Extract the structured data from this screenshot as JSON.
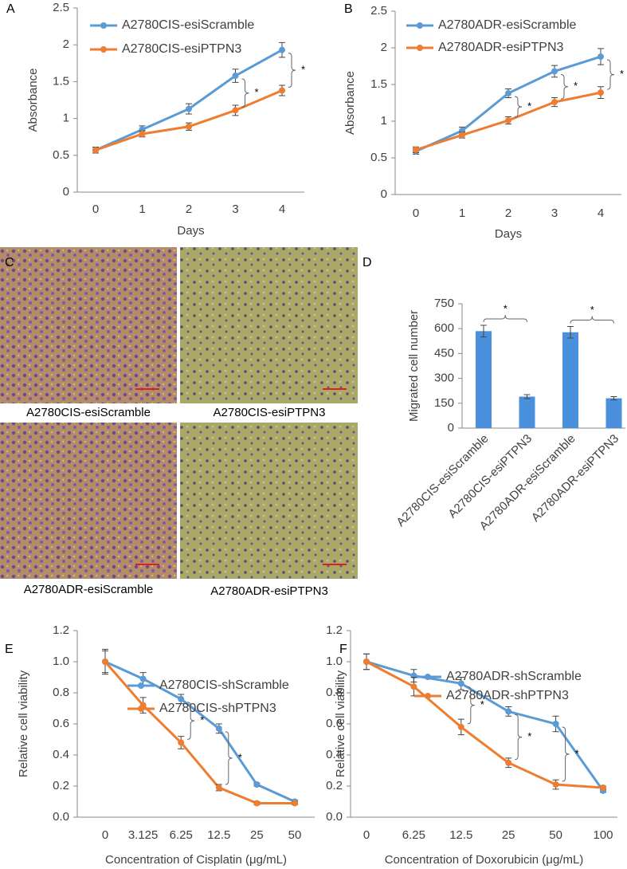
{
  "chart_data": [
    {
      "type": "line",
      "label": "A",
      "xlabel": "Days",
      "ylabel": "Absorbance",
      "categories": [
        "0",
        "1",
        "2",
        "3",
        "4"
      ],
      "series": [
        {
          "name": "A2780CIS-esiScramble",
          "color": "#5b9bd5",
          "values": [
            0.57,
            0.85,
            1.13,
            1.58,
            1.93
          ],
          "errors": [
            0.04,
            0.05,
            0.07,
            0.09,
            0.1
          ]
        },
        {
          "name": "A2780CIS-esiPTPN3",
          "color": "#ed7d31",
          "values": [
            0.57,
            0.79,
            0.89,
            1.11,
            1.38
          ],
          "errors": [
            0.04,
            0.04,
            0.05,
            0.07,
            0.07
          ]
        }
      ],
      "ylim": [
        0,
        2.5
      ],
      "yticks": [
        0,
        0.5,
        1,
        1.5,
        2,
        2.5
      ],
      "annotations": [
        "*",
        "*"
      ]
    },
    {
      "type": "line",
      "label": "B",
      "xlabel": "Days",
      "ylabel": "Absorbance",
      "categories": [
        "0",
        "1",
        "2",
        "3",
        "4"
      ],
      "series": [
        {
          "name": "A2780ADR-esiScramble",
          "color": "#5b9bd5",
          "values": [
            0.59,
            0.87,
            1.38,
            1.68,
            1.88
          ],
          "errors": [
            0.04,
            0.05,
            0.06,
            0.08,
            0.11
          ]
        },
        {
          "name": "A2780ADR-esiPTPN3",
          "color": "#ed7d31",
          "values": [
            0.61,
            0.81,
            1.01,
            1.26,
            1.39
          ],
          "errors": [
            0.04,
            0.04,
            0.05,
            0.06,
            0.08
          ]
        }
      ],
      "ylim": [
        0,
        2.5
      ],
      "yticks": [
        0,
        0.5,
        1,
        1.5,
        2,
        2.5
      ],
      "annotations": [
        "*",
        "*",
        "*"
      ]
    },
    {
      "type": "bar",
      "label": "D",
      "ylabel": "Migrated cell number",
      "categories": [
        "A2780CIS-esiScramble",
        "A2780CIS-esiPTPN3",
        "A2780ADR-esiScramble",
        "A2780ADR-esiPTPN3"
      ],
      "values": [
        585,
        190,
        578,
        180
      ],
      "errors": [
        35,
        12,
        35,
        10
      ],
      "color": "#4a90dc",
      "ylim": [
        0,
        750
      ],
      "yticks": [
        0,
        150,
        300,
        450,
        600,
        750
      ],
      "annotations": [
        "*",
        "*"
      ]
    },
    {
      "type": "line",
      "label": "E",
      "xlabel": "Concentration of Cisplatin (μg/mL)",
      "ylabel": "Relative cell viability",
      "categories": [
        "0",
        "3.125",
        "6.25",
        "12.5",
        "25",
        "50"
      ],
      "series": [
        {
          "name": "A2780CIS-shScramble",
          "color": "#5b9bd5",
          "values": [
            1.0,
            0.89,
            0.76,
            0.57,
            0.21,
            0.1
          ],
          "errors": [
            0.07,
            0.04,
            0.03,
            0.03,
            0.01,
            0.01
          ]
        },
        {
          "name": "A2780CIS-shPTPN3",
          "color": "#ed7d31",
          "values": [
            1.0,
            0.72,
            0.48,
            0.19,
            0.09,
            0.09
          ],
          "errors": [
            0.08,
            0.05,
            0.04,
            0.02,
            0.01,
            0.01
          ]
        }
      ],
      "ylim": [
        0,
        1.2
      ],
      "yticks": [
        {
          "value": 0,
          "label": "0.0"
        },
        {
          "value": 0.2,
          "label": "0.2"
        },
        {
          "value": 0.4,
          "label": "0.4"
        },
        {
          "value": 0.6,
          "label": "0.6"
        },
        {
          "value": 0.8,
          "label": "0.8"
        },
        {
          "value": 1,
          "label": "1.0"
        },
        {
          "value": 1.2,
          "label": "1.2"
        }
      ],
      "annotations": [
        "*",
        "*"
      ]
    },
    {
      "type": "line",
      "label": "F",
      "xlabel": "Concentration of Doxorubicin (μg/mL)",
      "ylabel": "Relative cell viability",
      "categories": [
        "0",
        "6.25",
        "12.5",
        "25",
        "50",
        "100"
      ],
      "series": [
        {
          "name": "A2780ADR-shScramble",
          "color": "#5b9bd5",
          "values": [
            1.0,
            0.91,
            0.86,
            0.68,
            0.6,
            0.17
          ],
          "errors": [
            0.05,
            0.04,
            0.04,
            0.03,
            0.05,
            0.01
          ]
        },
        {
          "name": "A2780ADR-shPTPN3",
          "color": "#ed7d31",
          "values": [
            1.0,
            0.84,
            0.58,
            0.35,
            0.21,
            0.19
          ],
          "errors": [
            0.05,
            0.06,
            0.05,
            0.03,
            0.03,
            0.01
          ]
        }
      ],
      "ylim": [
        0,
        1.2
      ],
      "yticks": [
        {
          "value": 0,
          "label": "0.0"
        },
        {
          "value": 0.2,
          "label": "0.2"
        },
        {
          "value": 0.4,
          "label": "0.4"
        },
        {
          "value": 0.6,
          "label": "0.6"
        },
        {
          "value": 0.8,
          "label": "0.8"
        },
        {
          "value": 1,
          "label": "1.0"
        },
        {
          "value": 1.2,
          "label": "1.2"
        }
      ],
      "annotations": [
        "*",
        "*",
        "*"
      ]
    }
  ],
  "image_panel": {
    "label": "C",
    "captions": [
      "A2780CIS-esiScramble",
      "A2780CIS-esiPTPN3",
      "A2780ADR-esiScramble",
      "A2780ADR-esiPTPN3"
    ]
  }
}
